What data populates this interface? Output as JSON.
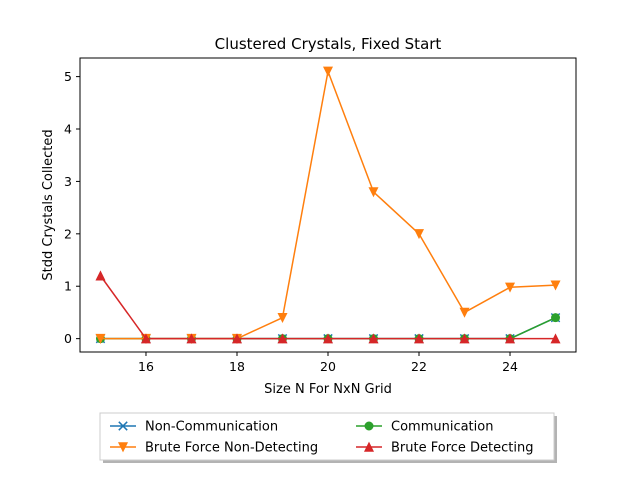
{
  "chart_data": {
    "type": "line",
    "title": "Clustered Crystals, Fixed Start",
    "xlabel": "Size N For NxN Grid",
    "ylabel": "Stdd Crystals Collected",
    "xlim": [
      14.55,
      25.45
    ],
    "ylim": [
      -0.255,
      5.355
    ],
    "xticks": [
      16,
      18,
      20,
      22,
      24
    ],
    "yticks": [
      0,
      1,
      2,
      3,
      4,
      5
    ],
    "grid": false,
    "legend_position": "lower-center-outside",
    "x": [
      15,
      16,
      17,
      18,
      19,
      20,
      21,
      22,
      23,
      24,
      25
    ],
    "series": [
      {
        "name": "Non-Communication",
        "color": "#1f77b4",
        "marker": "x",
        "values": [
          0,
          0,
          0,
          0,
          0,
          0,
          0,
          0,
          0,
          0,
          0.4
        ]
      },
      {
        "name": "Communication",
        "color": "#2ca02c",
        "marker": "circle",
        "values": [
          0,
          0,
          0,
          0,
          0,
          0,
          0,
          0,
          0,
          0,
          0.4
        ]
      },
      {
        "name": "Brute Force Non-Detecting",
        "color": "#ff7f0e",
        "marker": "triangle-down",
        "values": [
          0,
          0,
          0,
          0,
          0.4,
          5.1,
          2.8,
          2.0,
          0.5,
          0.98,
          1.02
        ]
      },
      {
        "name": "Brute Force Detecting",
        "color": "#d62728",
        "marker": "triangle-up",
        "values": [
          1.2,
          0,
          0,
          0,
          0,
          0,
          0,
          0,
          0,
          0,
          0
        ]
      }
    ],
    "legend_order": [
      0,
      2,
      1,
      3
    ]
  }
}
